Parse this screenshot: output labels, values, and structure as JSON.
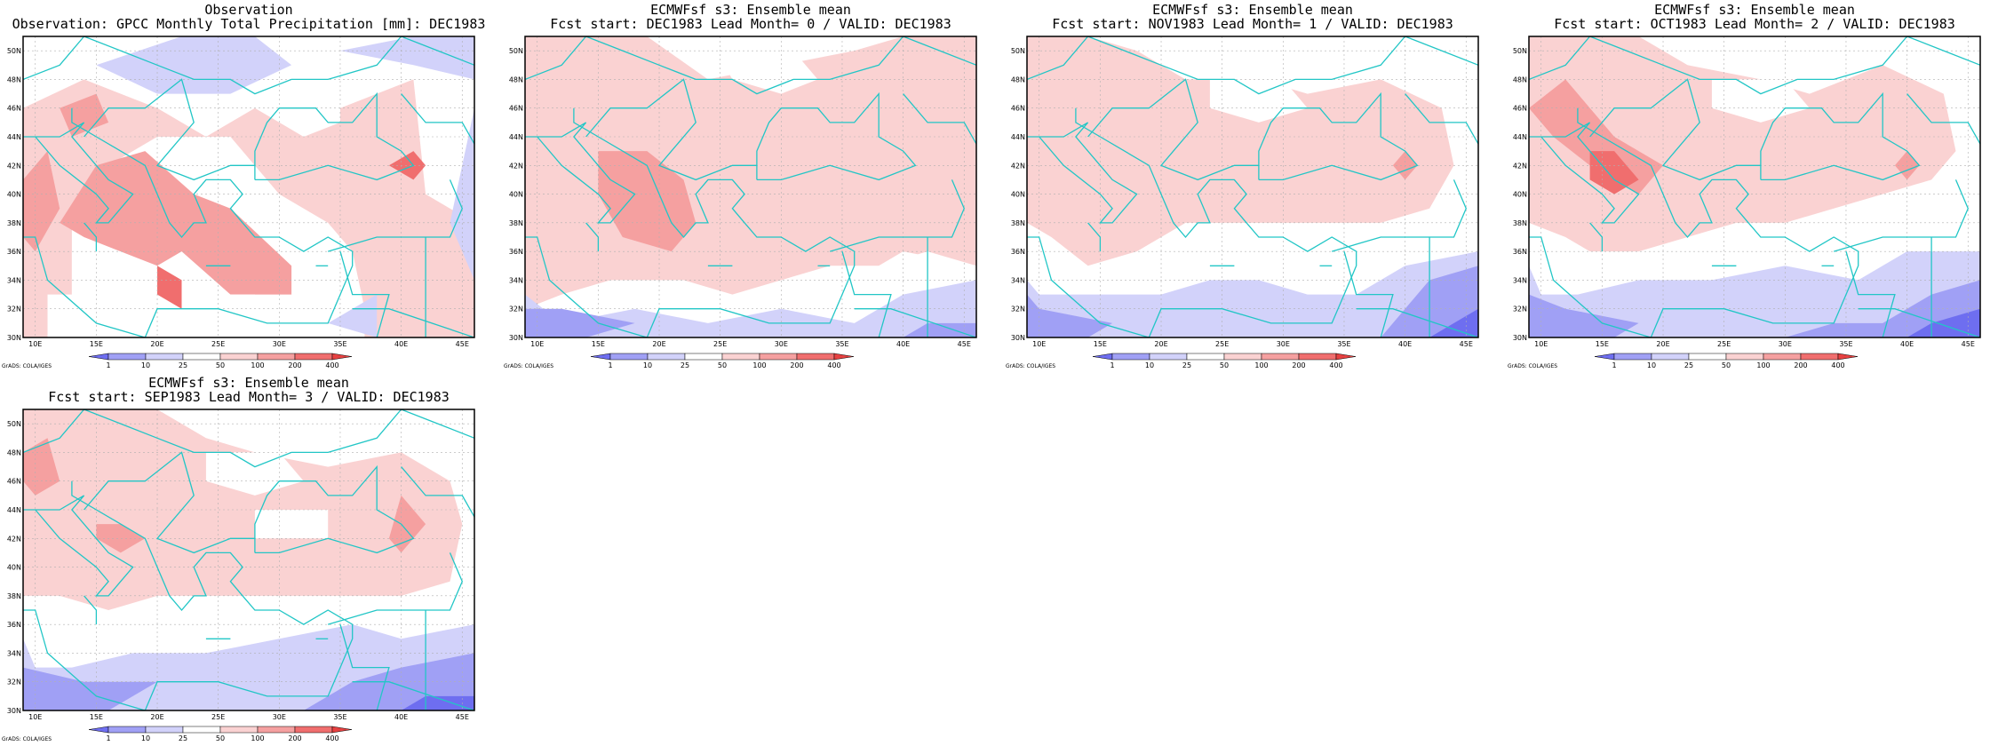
{
  "panels": [
    {
      "title_line1": "Observation",
      "title_line2": "Observation: GPCC Monthly Total Precipitation [mm]: DEC1983",
      "variant": "obs"
    },
    {
      "title_line1": "ECMWFsf s3: Ensemble mean",
      "title_line2": "Fcst start: DEC1983  Lead Month= 0 / VALID: DEC1983",
      "variant": "lead0"
    },
    {
      "title_line1": "ECMWFsf s3: Ensemble mean",
      "title_line2": "Fcst start: NOV1983  Lead Month= 1 / VALID: DEC1983",
      "variant": "lead1"
    },
    {
      "title_line1": "ECMWFsf s3: Ensemble mean",
      "title_line2": "Fcst start: OCT1983  Lead Month= 2 / VALID: DEC1983",
      "variant": "lead2"
    },
    {
      "title_line1": "ECMWFsf s3: Ensemble mean",
      "title_line2": "Fcst start: SEP1983  Lead Month= 3 / VALID: DEC1983",
      "variant": "lead3"
    }
  ],
  "lat_labels": [
    "30N",
    "32N",
    "34N",
    "36N",
    "38N",
    "40N",
    "42N",
    "44N",
    "46N",
    "48N",
    "50N"
  ],
  "lon_labels": [
    "10E",
    "15E",
    "20E",
    "25E",
    "30E",
    "35E",
    "40E",
    "45E"
  ],
  "colorbar": {
    "labels": [
      "1",
      "10",
      "25",
      "50",
      "100",
      "200",
      "400"
    ],
    "colors": [
      "#6e6ef0",
      "#a0a0f5",
      "#d2d2fa",
      "#ffffff",
      "#fad2d2",
      "#f5a0a0",
      "#f06e6e",
      "#e64141"
    ]
  },
  "credit": "GrADS: COLA/IGES",
  "colors": {
    "coast": "#22c6c6",
    "grid": "#b0b0b0",
    "frame": "#000000"
  }
}
